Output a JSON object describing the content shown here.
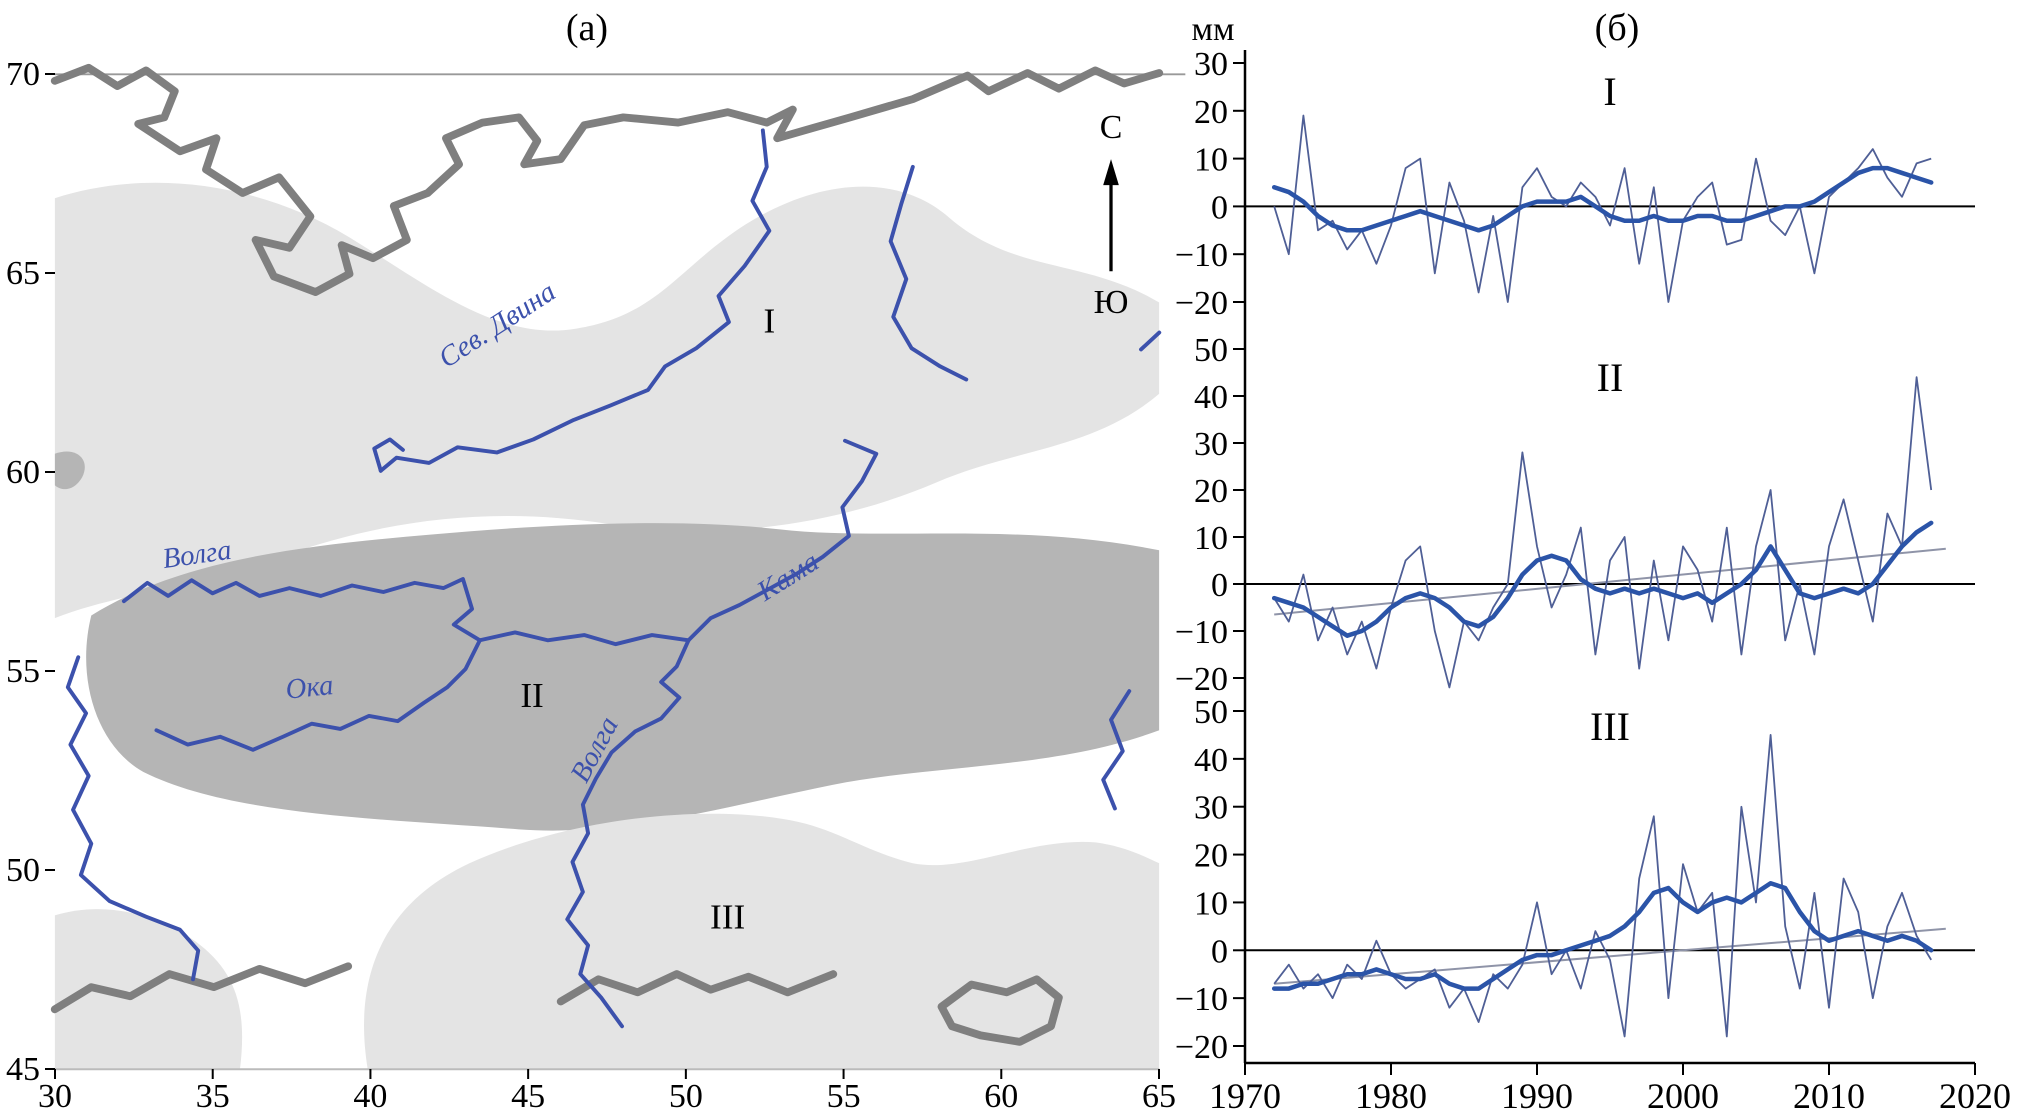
{
  "figure": {
    "panel_a_title": "(а)",
    "panel_b_title": "(б)",
    "units_label": "мм"
  },
  "colors": {
    "river_blue": "#3c51ac",
    "annual_line": "#4f5f96",
    "smoothed_line": "#2b54a8",
    "trend_line": "#8f94a8",
    "shade_light": "#e4e4e4",
    "shade_dark": "#b5b5b5",
    "coast_gray": "#7f7f7f"
  },
  "map": {
    "x_ticks": [
      30,
      35,
      40,
      45,
      50,
      55,
      60,
      65
    ],
    "y_ticks": [
      70,
      65,
      60,
      55,
      50,
      45
    ],
    "region_labels": [
      {
        "text": "I"
      },
      {
        "text": "II"
      },
      {
        "text": "III"
      }
    ],
    "river_labels": [
      {
        "name": "Сев. Двина"
      },
      {
        "name": "Волга"
      },
      {
        "name": "Ока"
      },
      {
        "name": "Волга"
      },
      {
        "name": "Кама"
      }
    ],
    "compass": {
      "north": "С",
      "south": "Ю"
    }
  },
  "chart_axis": {
    "x_ticks": [
      1970,
      1980,
      1990,
      2000,
      2010,
      2020
    ],
    "xlim": [
      1970,
      2020
    ],
    "y_units": "мм"
  },
  "chart_data": [
    {
      "type": "line",
      "title": "I",
      "label": "I",
      "ylim": [
        -20,
        30
      ],
      "y_ticks": [
        30,
        20,
        10,
        0,
        -10,
        -20
      ],
      "x": [
        1972,
        1973,
        1974,
        1975,
        1976,
        1977,
        1978,
        1979,
        1980,
        1981,
        1982,
        1983,
        1984,
        1985,
        1986,
        1987,
        1988,
        1989,
        1990,
        1991,
        1992,
        1993,
        1994,
        1995,
        1996,
        1997,
        1998,
        1999,
        2000,
        2001,
        2002,
        2003,
        2004,
        2005,
        2006,
        2007,
        2008,
        2009,
        2010,
        2011,
        2012,
        2013,
        2014,
        2015,
        2016,
        2017
      ],
      "series": [
        {
          "name": "annual",
          "values": [
            0,
            -10,
            19,
            -5,
            -3,
            -9,
            -5,
            -12,
            -4,
            8,
            10,
            -14,
            5,
            -3,
            -18,
            -2,
            -20,
            4,
            8,
            2,
            0,
            5,
            2,
            -4,
            8,
            -12,
            4,
            -20,
            -3,
            2,
            5,
            -8,
            -7,
            10,
            -3,
            -6,
            0,
            -14,
            2,
            5,
            8,
            12,
            6,
            2,
            9,
            10
          ]
        },
        {
          "name": "smoothed",
          "values": [
            4,
            3,
            1,
            -2,
            -4,
            -5,
            -5,
            -4,
            -3,
            -2,
            -1,
            -2,
            -3,
            -4,
            -5,
            -4,
            -2,
            0,
            1,
            1,
            1,
            2,
            0,
            -2,
            -3,
            -3,
            -2,
            -3,
            -3,
            -2,
            -2,
            -3,
            -3,
            -2,
            -1,
            0,
            0,
            1,
            3,
            5,
            7,
            8,
            8,
            7,
            6,
            5
          ]
        }
      ],
      "trend": null
    },
    {
      "type": "line",
      "title": "II",
      "label": "II",
      "ylim": [
        -20,
        50
      ],
      "y_ticks": [
        50,
        40,
        30,
        20,
        10,
        0,
        -10,
        -20
      ],
      "x": [
        1972,
        1973,
        1974,
        1975,
        1976,
        1977,
        1978,
        1979,
        1980,
        1981,
        1982,
        1983,
        1984,
        1985,
        1986,
        1987,
        1988,
        1989,
        1990,
        1991,
        1992,
        1993,
        1994,
        1995,
        1996,
        1997,
        1998,
        1999,
        2000,
        2001,
        2002,
        2003,
        2004,
        2005,
        2006,
        2007,
        2008,
        2009,
        2010,
        2011,
        2012,
        2013,
        2014,
        2015,
        2016,
        2017
      ],
      "series": [
        {
          "name": "annual",
          "values": [
            -3,
            -8,
            2,
            -12,
            -5,
            -15,
            -8,
            -18,
            -5,
            5,
            8,
            -10,
            -22,
            -8,
            -12,
            -5,
            0,
            28,
            8,
            -5,
            2,
            12,
            -15,
            5,
            10,
            -18,
            5,
            -12,
            8,
            3,
            -8,
            12,
            -15,
            8,
            20,
            -12,
            0,
            -15,
            8,
            18,
            5,
            -8,
            15,
            8,
            44,
            20
          ]
        },
        {
          "name": "smoothed",
          "values": [
            -3,
            -4,
            -5,
            -7,
            -9,
            -11,
            -10,
            -8,
            -5,
            -3,
            -2,
            -3,
            -5,
            -8,
            -9,
            -7,
            -3,
            2,
            5,
            6,
            5,
            1,
            -1,
            -2,
            -1,
            -2,
            -1,
            -2,
            -3,
            -2,
            -4,
            -2,
            0,
            3,
            8,
            3,
            -2,
            -3,
            -2,
            -1,
            -2,
            0,
            4,
            8,
            11,
            13
          ]
        }
      ],
      "trend": {
        "x": [
          1972,
          2018
        ],
        "y": [
          -6.5,
          7.5
        ]
      }
    },
    {
      "type": "line",
      "title": "III",
      "label": "III",
      "ylim": [
        -20,
        50
      ],
      "y_ticks": [
        50,
        40,
        30,
        20,
        10,
        0,
        -10,
        -20
      ],
      "x": [
        1972,
        1973,
        1974,
        1975,
        1976,
        1977,
        1978,
        1979,
        1980,
        1981,
        1982,
        1983,
        1984,
        1985,
        1986,
        1987,
        1988,
        1989,
        1990,
        1991,
        1992,
        1993,
        1994,
        1995,
        1996,
        1997,
        1998,
        1999,
        2000,
        2001,
        2002,
        2003,
        2004,
        2005,
        2006,
        2007,
        2008,
        2009,
        2010,
        2011,
        2012,
        2013,
        2014,
        2015,
        2016,
        2017
      ],
      "series": [
        {
          "name": "annual",
          "values": [
            -7,
            -3,
            -8,
            -5,
            -10,
            -3,
            -6,
            2,
            -5,
            -8,
            -6,
            -4,
            -12,
            -8,
            -15,
            -5,
            -8,
            -3,
            10,
            -5,
            0,
            -8,
            4,
            -2,
            -18,
            15,
            28,
            -10,
            18,
            8,
            12,
            -18,
            30,
            10,
            45,
            5,
            -8,
            12,
            -12,
            15,
            8,
            -10,
            5,
            12,
            3,
            -2
          ]
        },
        {
          "name": "smoothed",
          "values": [
            -8,
            -8,
            -7,
            -7,
            -6,
            -5,
            -5,
            -4,
            -5,
            -6,
            -6,
            -5,
            -7,
            -8,
            -8,
            -6,
            -4,
            -2,
            -1,
            -1,
            0,
            1,
            2,
            3,
            5,
            8,
            12,
            13,
            10,
            8,
            10,
            11,
            10,
            12,
            14,
            13,
            8,
            4,
            2,
            3,
            4,
            3,
            2,
            3,
            2,
            0
          ]
        }
      ],
      "trend": {
        "x": [
          1972,
          2018
        ],
        "y": [
          -7,
          4.5
        ]
      }
    }
  ]
}
